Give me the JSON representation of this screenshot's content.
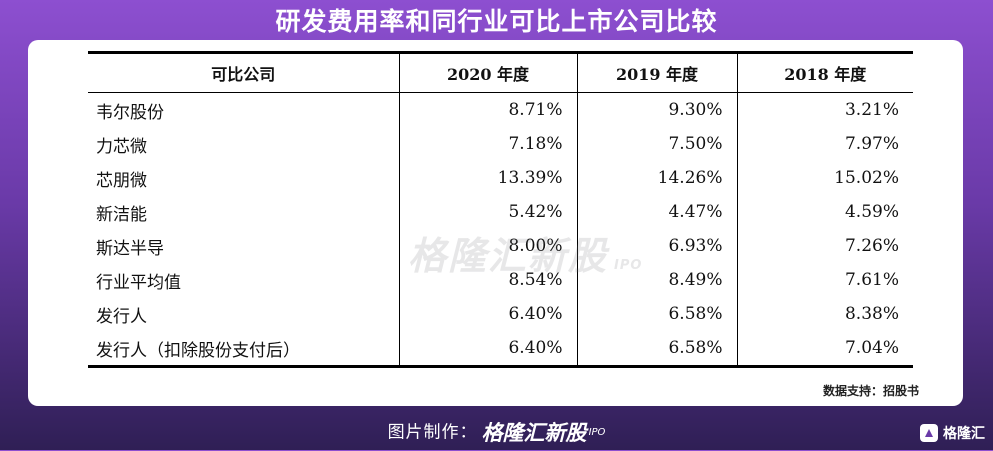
{
  "title": "研发费用率和同行业可比上市公司比较",
  "source_note": "数据支持：招股书",
  "watermark": {
    "brand": "格隆汇新股",
    "ipo": "IPO"
  },
  "footer": {
    "label": "图片制作：",
    "brand": "格隆汇新股",
    "brand_ipo": "IPO"
  },
  "corner_logo": {
    "text": "格隆汇",
    "icon": "gelonghui-logo-icon"
  },
  "chart_data": {
    "type": "table",
    "columns": [
      "可比公司",
      "2020 年度",
      "2019 年度",
      "2018 年度"
    ],
    "rows": [
      {
        "name": "韦尔股份",
        "values": [
          "8.71%",
          "9.30%",
          "3.21%"
        ]
      },
      {
        "name": "力芯微",
        "values": [
          "7.18%",
          "7.50%",
          "7.97%"
        ]
      },
      {
        "name": "芯朋微",
        "values": [
          "13.39%",
          "14.26%",
          "15.02%"
        ]
      },
      {
        "name": "新洁能",
        "values": [
          "5.42%",
          "4.47%",
          "4.59%"
        ]
      },
      {
        "name": "斯达半导",
        "values": [
          "8.00%",
          "6.93%",
          "7.26%"
        ]
      },
      {
        "name": "行业平均值",
        "values": [
          "8.54%",
          "8.49%",
          "7.61%"
        ]
      },
      {
        "name": "发行人",
        "values": [
          "6.40%",
          "6.58%",
          "8.38%"
        ]
      },
      {
        "name": "发行人（扣除股份支付后）",
        "values": [
          "6.40%",
          "6.58%",
          "7.04%"
        ]
      }
    ]
  }
}
